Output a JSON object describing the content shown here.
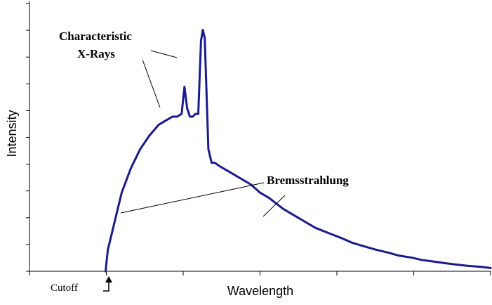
{
  "chart_data": {
    "type": "line",
    "title": "",
    "xlabel": "Wavelength",
    "ylabel": "Intensity",
    "xlim": [
      0,
      100
    ],
    "ylim": [
      0,
      100
    ],
    "grid": false,
    "series": [
      {
        "color": "#1a1a8c",
        "x": [
          16.5,
          17,
          18,
          19,
          20,
          22,
          24,
          26,
          28,
          30,
          31,
          32,
          33,
          33.6,
          34.2,
          34.8,
          35.4,
          36,
          36.6,
          37.2,
          37.6,
          38,
          38.8,
          39.5,
          40.2,
          41,
          43,
          45,
          48,
          50,
          52,
          55,
          58,
          60,
          62,
          65,
          68,
          70,
          73,
          75,
          78,
          80,
          83,
          85,
          88,
          90,
          93,
          95,
          98,
          100
        ],
        "y": [
          0,
          8,
          15,
          22,
          29,
          38,
          45,
          50,
          54,
          56,
          57,
          57,
          58,
          68,
          60,
          57,
          57,
          58,
          58,
          85,
          89,
          86,
          45,
          40,
          40,
          39,
          37,
          35,
          32,
          29,
          27,
          23,
          20,
          18,
          16,
          14,
          12,
          10.5,
          9,
          8,
          6.8,
          5.8,
          5,
          4.2,
          3.5,
          3,
          2.4,
          2,
          1.6,
          1.2
        ]
      }
    ],
    "annotations": [
      {
        "text_lines": [
          "Characteristic",
          "X-Rays"
        ]
      },
      {
        "text": "Bremsstrahlung"
      },
      {
        "text": "Cutoff"
      }
    ]
  }
}
